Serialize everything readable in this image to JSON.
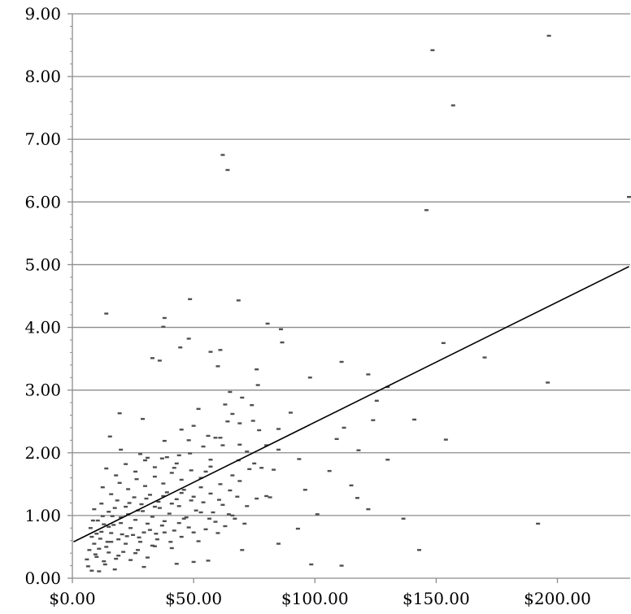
{
  "chart_data": {
    "type": "scatter",
    "title": "",
    "xlabel": "",
    "ylabel": "",
    "xlim": [
      0,
      230
    ],
    "ylim": [
      0,
      9
    ],
    "grid": "horizontal major gridlines",
    "legend": "none",
    "x_ticks": [
      0,
      50,
      100,
      150,
      200
    ],
    "x_tick_labels": [
      "$0.00",
      "$50.00",
      "$100.00",
      "$150.00",
      "$200.00"
    ],
    "y_ticks": [
      0,
      1,
      2,
      3,
      4,
      5,
      6,
      7,
      8,
      9
    ],
    "y_tick_labels": [
      "0.00",
      "1.00",
      "2.00",
      "3.00",
      "4.00",
      "5.00",
      "6.00",
      "7.00",
      "8.00",
      "9.00"
    ],
    "trendline": {
      "type": "linear",
      "x": [
        0.5,
        229.5
      ],
      "y": [
        0.58,
        4.97
      ]
    },
    "colors": {
      "points": "#505050",
      "trendline": "#000000",
      "gridlines": "#8c8c8c"
    },
    "series": [
      {
        "points": [
          [
            196.5,
            8.65
          ],
          [
            148.5,
            8.42
          ],
          [
            157,
            7.54
          ],
          [
            62,
            6.75
          ],
          [
            64,
            6.51
          ],
          [
            229.5,
            6.08
          ],
          [
            146,
            5.87
          ],
          [
            14,
            4.22
          ],
          [
            48.5,
            4.45
          ],
          [
            68.5,
            4.43
          ],
          [
            38,
            4.15
          ],
          [
            37.5,
            4.01
          ],
          [
            80.5,
            4.06
          ],
          [
            86,
            3.97
          ],
          [
            48,
            3.82
          ],
          [
            44.5,
            3.68
          ],
          [
            86.5,
            3.76
          ],
          [
            153,
            3.75
          ],
          [
            57,
            3.61
          ],
          [
            61,
            3.64
          ],
          [
            33,
            3.51
          ],
          [
            36,
            3.47
          ],
          [
            111,
            3.45
          ],
          [
            170,
            3.52
          ],
          [
            60,
            3.38
          ],
          [
            76,
            3.33
          ],
          [
            122,
            3.25
          ],
          [
            98,
            3.2
          ],
          [
            76.5,
            3.08
          ],
          [
            196,
            3.12
          ],
          [
            130,
            3.05
          ],
          [
            125.5,
            2.83
          ],
          [
            65,
            2.97
          ],
          [
            70,
            2.88
          ],
          [
            63,
            2.77
          ],
          [
            74,
            2.76
          ],
          [
            52,
            2.7
          ],
          [
            66,
            2.62
          ],
          [
            90,
            2.64
          ],
          [
            19.5,
            2.63
          ],
          [
            29,
            2.54
          ],
          [
            69,
            2.47
          ],
          [
            50,
            2.43
          ],
          [
            64,
            2.5
          ],
          [
            74.5,
            2.51
          ],
          [
            124,
            2.52
          ],
          [
            141,
            2.53
          ],
          [
            15.5,
            2.26
          ],
          [
            56,
            2.27
          ],
          [
            59,
            2.24
          ],
          [
            61,
            2.24
          ],
          [
            77,
            2.36
          ],
          [
            85,
            2.38
          ],
          [
            112,
            2.4
          ],
          [
            109,
            2.22
          ],
          [
            154,
            2.21
          ],
          [
            38,
            2.19
          ],
          [
            45,
            2.37
          ],
          [
            48,
            2.2
          ],
          [
            54,
            2.1
          ],
          [
            62,
            2.12
          ],
          [
            69,
            2.13
          ],
          [
            72,
            2.02
          ],
          [
            80,
            2.12
          ],
          [
            85,
            2.05
          ],
          [
            118,
            2.04
          ],
          [
            20,
            2.05
          ],
          [
            28,
            1.98
          ],
          [
            31,
            1.92
          ],
          [
            37,
            1.91
          ],
          [
            44,
            1.96
          ],
          [
            48.5,
            1.99
          ],
          [
            57,
            1.89
          ],
          [
            68.5,
            1.88
          ],
          [
            75,
            1.83
          ],
          [
            78,
            1.76
          ],
          [
            93.5,
            1.9
          ],
          [
            106,
            1.71
          ],
          [
            130,
            1.89
          ],
          [
            42,
            1.76
          ],
          [
            55,
            1.7
          ],
          [
            66,
            1.64
          ],
          [
            73,
            1.74
          ],
          [
            83,
            1.73
          ],
          [
            96,
            1.41
          ],
          [
            122,
            1.1
          ],
          [
            115,
            1.48
          ],
          [
            136.5,
            0.95
          ],
          [
            143,
            0.45
          ],
          [
            192,
            0.87
          ],
          [
            98.5,
            0.22
          ],
          [
            111,
            0.2
          ],
          [
            85,
            0.55
          ],
          [
            93,
            0.79
          ],
          [
            80,
            1.31
          ],
          [
            81.5,
            1.29
          ],
          [
            76,
            1.27
          ],
          [
            101,
            1.02
          ],
          [
            117.5,
            1.28
          ],
          [
            70,
            0.45
          ],
          [
            60,
            0.72
          ],
          [
            50,
            0.26
          ],
          [
            56,
            0.28
          ],
          [
            43,
            0.23
          ],
          [
            29.5,
            0.18
          ],
          [
            17.5,
            0.14
          ],
          [
            11,
            0.11
          ],
          [
            8,
            0.12
          ],
          [
            6.5,
            0.19
          ],
          [
            10,
            0.34
          ],
          [
            13,
            0.27
          ],
          [
            15,
            0.41
          ],
          [
            18,
            0.31
          ],
          [
            21,
            0.42
          ],
          [
            24,
            0.29
          ],
          [
            27,
            0.45
          ],
          [
            31,
            0.33
          ],
          [
            34,
            0.51
          ],
          [
            7,
            0.45
          ],
          [
            9,
            0.55
          ],
          [
            11.5,
            0.63
          ],
          [
            14,
            0.5
          ],
          [
            16,
            0.72
          ],
          [
            19,
            0.62
          ],
          [
            22,
            0.55
          ],
          [
            25,
            0.69
          ],
          [
            28,
            0.58
          ],
          [
            32,
            0.77
          ],
          [
            35,
            0.62
          ],
          [
            38,
            0.73
          ],
          [
            41,
            0.48
          ],
          [
            45,
            0.66
          ],
          [
            48,
            0.81
          ],
          [
            52,
            0.59
          ],
          [
            55,
            0.78
          ],
          [
            59,
            0.9
          ],
          [
            63,
            0.83
          ],
          [
            67,
            0.95
          ],
          [
            71,
            0.87
          ],
          [
            7.5,
            0.8
          ],
          [
            10.5,
            0.92
          ],
          [
            13,
            0.86
          ],
          [
            16.5,
            0.99
          ],
          [
            20,
            0.88
          ],
          [
            23,
            1.02
          ],
          [
            26,
            0.93
          ],
          [
            29,
            1.07
          ],
          [
            33,
            0.98
          ],
          [
            36,
            1.12
          ],
          [
            40,
            1.03
          ],
          [
            44,
            1.15
          ],
          [
            47,
            0.97
          ],
          [
            51,
            1.08
          ],
          [
            54,
            1.21
          ],
          [
            58,
            1.05
          ],
          [
            62,
            1.17
          ],
          [
            66,
            1.0
          ],
          [
            9,
            1.1
          ],
          [
            12,
            1.19
          ],
          [
            15,
            1.06
          ],
          [
            18.5,
            1.24
          ],
          [
            22,
            1.14
          ],
          [
            25.5,
            1.29
          ],
          [
            28.5,
            1.18
          ],
          [
            32,
            1.33
          ],
          [
            35.5,
            1.22
          ],
          [
            39,
            1.37
          ],
          [
            43,
            1.26
          ],
          [
            46,
            1.41
          ],
          [
            50,
            1.3
          ],
          [
            53,
            1.45
          ],
          [
            57,
            1.35
          ],
          [
            61,
            1.5
          ],
          [
            65,
            1.4
          ],
          [
            69,
            1.55
          ],
          [
            12.5,
            1.45
          ],
          [
            16,
            1.34
          ],
          [
            19.5,
            1.52
          ],
          [
            23,
            1.42
          ],
          [
            26.5,
            1.58
          ],
          [
            30,
            1.47
          ],
          [
            34,
            1.62
          ],
          [
            37.5,
            1.51
          ],
          [
            41,
            1.68
          ],
          [
            45,
            1.57
          ],
          [
            49,
            1.72
          ],
          [
            53,
            1.6
          ],
          [
            57,
            1.78
          ],
          [
            14,
            1.75
          ],
          [
            18,
            1.64
          ],
          [
            22,
            1.82
          ],
          [
            26,
            1.7
          ],
          [
            30,
            1.88
          ],
          [
            34,
            1.77
          ],
          [
            39,
            1.93
          ],
          [
            43,
            1.83
          ],
          [
            8,
            0.66
          ],
          [
            9.5,
            0.38
          ],
          [
            12,
            0.74
          ],
          [
            14.5,
            0.58
          ],
          [
            17,
            0.85
          ],
          [
            20.5,
            0.7
          ],
          [
            24,
            0.8
          ],
          [
            27.5,
            0.65
          ],
          [
            31,
            0.87
          ],
          [
            34.5,
            0.71
          ],
          [
            38,
            0.91
          ],
          [
            42,
            0.76
          ],
          [
            46,
            0.95
          ],
          [
            50,
            0.73
          ],
          [
            11,
            0.47
          ],
          [
            13.5,
            0.22
          ],
          [
            16,
            0.58
          ],
          [
            19,
            0.36
          ],
          [
            22.5,
            0.67
          ],
          [
            26,
            0.4
          ],
          [
            29.5,
            0.73
          ],
          [
            33,
            0.52
          ],
          [
            37,
            0.84
          ],
          [
            40.5,
            0.58
          ],
          [
            44,
            0.88
          ],
          [
            6,
            0.3
          ],
          [
            8.5,
            0.92
          ],
          [
            10,
            0.71
          ],
          [
            12.5,
            0.99
          ],
          [
            15,
            0.82
          ],
          [
            17.5,
            1.12
          ],
          [
            20,
            0.97
          ],
          [
            23.5,
            1.2
          ],
          [
            27,
            1.08
          ],
          [
            30.5,
            1.27
          ],
          [
            34,
            1.14
          ],
          [
            37.5,
            1.31
          ],
          [
            41,
            1.19
          ],
          [
            45,
            1.36
          ],
          [
            49,
            1.24
          ],
          [
            53,
            1.05
          ],
          [
            56.5,
            0.95
          ],
          [
            60.5,
            1.25
          ],
          [
            64.5,
            1.02
          ],
          [
            68,
            1.3
          ],
          [
            72,
            1.15
          ]
        ]
      }
    ]
  }
}
